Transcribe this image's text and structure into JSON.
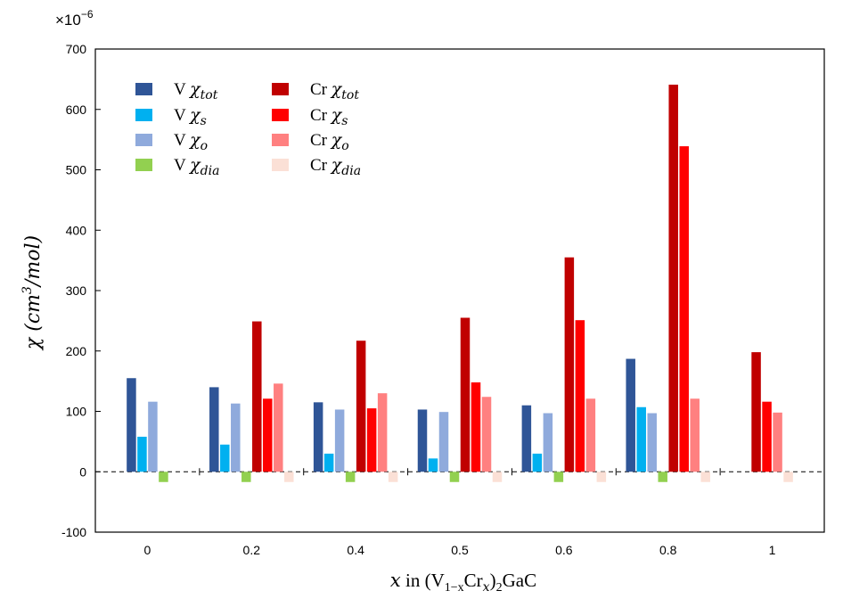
{
  "chart_data": {
    "type": "bar",
    "title": "",
    "multiplier_label": "×10",
    "multiplier_exponent": "−6",
    "xlabel": {
      "var": "x",
      "text1": " in (V",
      "sub1": "1−x",
      "text2": "Cr",
      "sub2": "x",
      "text3": ")",
      "sub3": "2",
      "text4": "GaC"
    },
    "ylabel": {
      "main": "χ (cm",
      "sup": "3",
      "tail": "/mol)"
    },
    "ylim": [
      -100,
      700
    ],
    "yticks": [
      -100,
      0,
      100,
      200,
      300,
      400,
      500,
      600,
      700
    ],
    "categories": [
      "0",
      "0.2",
      "0.4",
      "0.5",
      "0.6",
      "0.8",
      "1"
    ],
    "grid": false,
    "legend_position": "top-left",
    "series": [
      {
        "name": "V χtot",
        "prefix": "V",
        "sym": "χ",
        "sub": "tot",
        "color": "#2f5597",
        "values": [
          155,
          140,
          115,
          103,
          110,
          187,
          null
        ]
      },
      {
        "name": "V χs",
        "prefix": "V",
        "sym": "χ",
        "sub": "s",
        "color": "#00b0f0",
        "values": [
          58,
          45,
          30,
          22,
          30,
          107,
          null
        ]
      },
      {
        "name": "V χo",
        "prefix": "V",
        "sym": "χ",
        "sub": "o",
        "color": "#8faadc",
        "values": [
          116,
          113,
          103,
          99,
          97,
          97,
          null
        ]
      },
      {
        "name": "V χdia",
        "prefix": "V",
        "sym": "χ",
        "sub": "dia",
        "color": "#92d050",
        "values": [
          -17,
          -17,
          -17,
          -17,
          -17,
          -17,
          null
        ]
      },
      {
        "name": "Cr χtot",
        "prefix": "Cr",
        "sym": "χ",
        "sub": "tot",
        "color": "#c00000",
        "values": [
          null,
          249,
          217,
          255,
          355,
          641,
          198
        ]
      },
      {
        "name": "Cr χs",
        "prefix": "Cr",
        "sym": "χ",
        "sub": "s",
        "color": "#ff0000",
        "values": [
          null,
          121,
          105,
          148,
          251,
          539,
          116
        ]
      },
      {
        "name": "Cr χo",
        "prefix": "Cr",
        "sym": "χ",
        "sub": "o",
        "color": "#ff8080",
        "values": [
          null,
          146,
          130,
          124,
          121,
          121,
          98
        ]
      },
      {
        "name": "Cr χdia",
        "prefix": "Cr",
        "sym": "χ",
        "sub": "dia",
        "color": "#fbe0d6",
        "values": [
          null,
          -17,
          -17,
          -17,
          -17,
          -17,
          -17
        ]
      }
    ]
  }
}
